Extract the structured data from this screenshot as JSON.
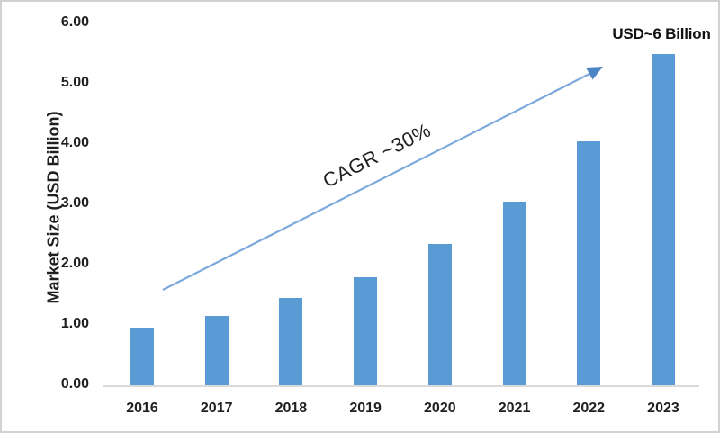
{
  "chart_data": {
    "type": "bar",
    "title": "",
    "categories": [
      "2016",
      "2017",
      "2018",
      "2019",
      "2020",
      "2021",
      "2022",
      "2023"
    ],
    "values": [
      0.95,
      1.15,
      1.45,
      1.8,
      2.35,
      3.05,
      4.05,
      5.5
    ],
    "xlabel": "",
    "ylabel": "Market Size (USD Billion)",
    "ylim": [
      0,
      6
    ],
    "yticks": [
      0,
      1,
      2,
      3,
      4,
      5,
      6
    ],
    "ytick_labels": [
      "0.00",
      "1.00",
      "2.00",
      "3.00",
      "4.00",
      "5.00",
      "6.00"
    ],
    "grid": false,
    "legend_position": "none",
    "colors": {
      "bar": "#5B9BD5",
      "arrow_line": "#7CA9DC",
      "arrow_head": "#4D86C6",
      "axis_line": "#D9D9D9",
      "text": "#1F1F1F"
    },
    "annotations": {
      "cagr_label": "CAGR ~30%",
      "end_label": "USD~6 Billion"
    }
  }
}
